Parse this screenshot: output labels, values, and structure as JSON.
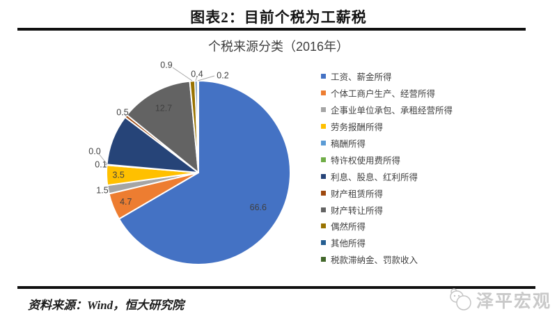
{
  "page": {
    "report_title": "图表2：目前个税为工薪税",
    "source_note": "资料来源：Wind，恒大研究院",
    "watermark_text": "泽平宏观"
  },
  "chart_data": {
    "type": "pie",
    "title": "个税来源分类（2016年）",
    "unit": "percent_share",
    "legend_position": "right",
    "start_angle_deg": 0,
    "clockwise": true,
    "categories": [
      "工资、薪金所得",
      "个体工商户生产、经营所得",
      "企事业单位承包、承租经营所得",
      "劳务报酬所得",
      "稿酬所得",
      "特许权使用费所得",
      "利息、股息、红利所得",
      "财产租赁所得",
      "财产转让所得",
      "偶然所得",
      "其他所得",
      "税款滞纳金、罚款收入"
    ],
    "values": [
      66.6,
      4.7,
      1.5,
      3.5,
      0.1,
      0.0,
      8.9,
      0.5,
      12.7,
      0.9,
      0.4,
      0.2
    ],
    "colors": [
      "#4472C4",
      "#ED7D31",
      "#A5A5A5",
      "#FFC000",
      "#5B9BD5",
      "#70AD47",
      "#264478",
      "#9E480E",
      "#636363",
      "#997300",
      "#255E91",
      "#43682B"
    ],
    "data_labels": [
      "66.6",
      "4.7",
      "1.5",
      "3.5",
      "0.1",
      "0.0",
      "",
      "0.5",
      "12.7",
      "0.9",
      "0.4",
      "0.2"
    ],
    "label_placement": [
      "inside",
      "inside",
      "outside",
      "inside",
      "outside",
      "outside",
      "none",
      "outside",
      "inside",
      "outside",
      "outside",
      "outside"
    ],
    "label_color": "#404040"
  }
}
